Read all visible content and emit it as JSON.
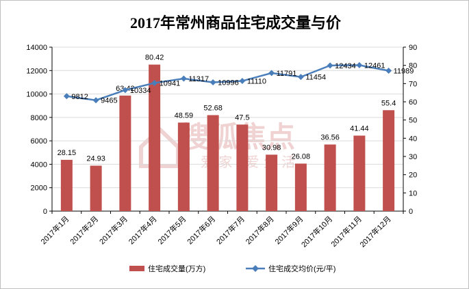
{
  "chart_data": {
    "title": "2017年常州商品住宅成交量与价",
    "type": "bar+line",
    "categories": [
      "2017年1月",
      "2017年2月",
      "2017年3月",
      "2017年4月",
      "2017年5月",
      "2017年6月",
      "2017年7月",
      "2017年8月",
      "2017年9月",
      "2017年10月",
      "2017年11月",
      "2017年12月"
    ],
    "series": [
      {
        "name": "住宅成交量(万方)",
        "type": "bar",
        "axis": "right",
        "color": "#c0504d",
        "values": [
          28.15,
          24.93,
          63.42,
          80.42,
          48.59,
          52.68,
          47.5,
          30.98,
          26.08,
          36.56,
          41.44,
          55.4
        ]
      },
      {
        "name": "住宅成交均价(元/平)",
        "type": "line",
        "axis": "left",
        "color": "#4a7ebb",
        "values": [
          9812,
          9465,
          10334,
          10941,
          11317,
          10996,
          11110,
          11791,
          11454,
          12434,
          12461,
          11989
        ]
      }
    ],
    "y_left": {
      "min": 0,
      "max": 14000,
      "step": 2000,
      "ticks": [
        "0",
        "2000",
        "4000",
        "6000",
        "8000",
        "10000",
        "12000",
        "14000"
      ]
    },
    "y_right": {
      "min": 0,
      "max": 90,
      "step": 10,
      "ticks": [
        "0",
        "10",
        "20",
        "30",
        "40",
        "50",
        "60",
        "70",
        "80",
        "90"
      ]
    },
    "grid": true,
    "legend_position": "bottom"
  },
  "watermark": {
    "brand": "搜狐焦点",
    "slogan": "爱 家 · 爱 生 活"
  }
}
